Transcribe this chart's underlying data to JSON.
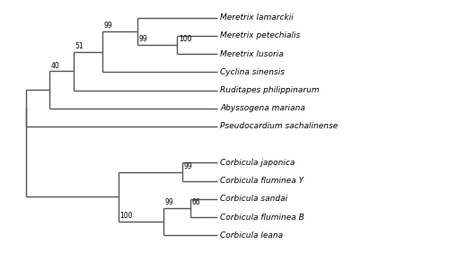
{
  "taxa_y": {
    "Meretrix lamarckii": 12,
    "Meretrix petechialis": 11,
    "Meretrix lusoria": 10,
    "Cyclina sinensis": 9,
    "Ruditapes philippinarum": 8,
    "Abyssogena mariana": 7,
    "Pseudocardium sachalinense": 6,
    "Corbicula japonica": 4,
    "Corbicula fluminea Y": 3,
    "Corbicula sandai": 2,
    "Corbicula fluminea B": 1,
    "Corbicula leana": 0
  },
  "tip_x": 7.5,
  "lw": 1.0,
  "color": "#555555",
  "fontsize_taxa": 6.5,
  "fontsize_bootstrap": 5.5,
  "bg_color": "#ffffff",
  "xlim": [
    -0.5,
    11.5
  ],
  "ylim": [
    -0.7,
    12.7
  ]
}
